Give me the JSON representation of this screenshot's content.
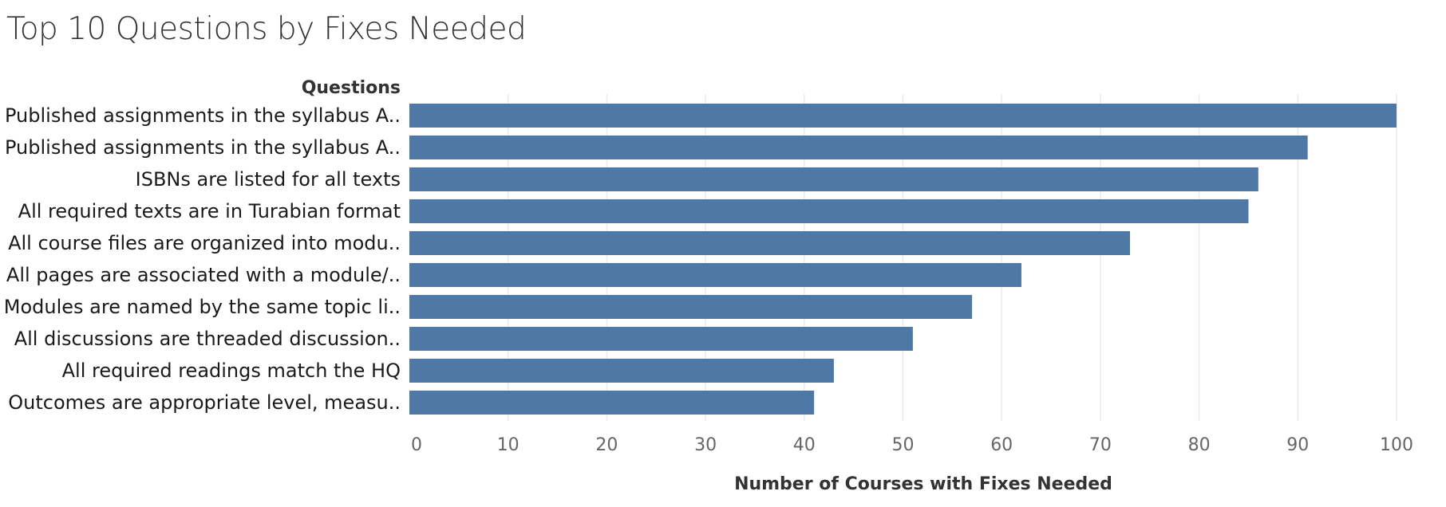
{
  "chart_data": {
    "type": "bar",
    "orientation": "horizontal",
    "title": "Top 10 Questions by Fixes Needed",
    "row_header": "Questions",
    "xlabel": "Number of Courses with Fixes Needed",
    "categories": [
      "Published assignments in the syllabus A..",
      "Published assignments in the syllabus A..",
      "ISBNs are listed for all texts",
      "All required texts are in Turabian format",
      "All course files are organized into modu..",
      "All pages are associated with a module/..",
      "Modules are named by the same topic li..",
      "All discussions are threaded discussion..",
      "All required readings match the HQ",
      "Outcomes are appropriate level, measu.."
    ],
    "values": [
      100,
      91,
      86,
      85,
      73,
      62,
      57,
      51,
      43,
      41
    ],
    "xlim": [
      0,
      100
    ],
    "xticks": [
      0,
      10,
      20,
      30,
      40,
      50,
      60,
      70,
      80,
      90,
      100
    ],
    "grid": "vertical",
    "bar_color": "#4e79a7"
  }
}
